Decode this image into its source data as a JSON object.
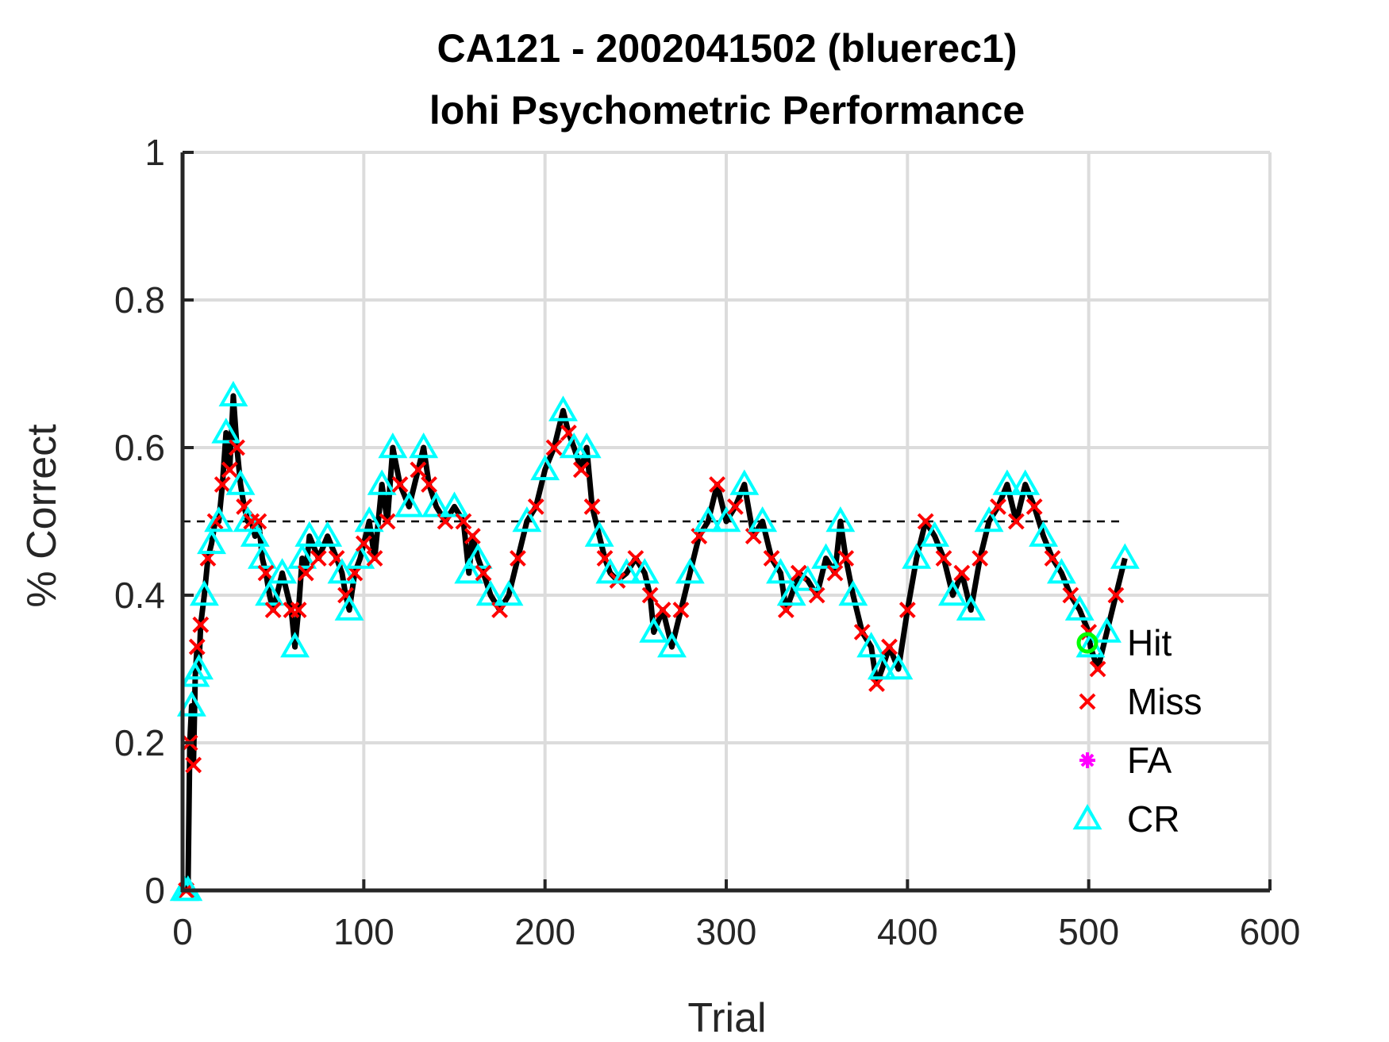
{
  "chart_data": {
    "type": "line",
    "title": [
      "CA121 - 2002041502 (bluerec1)",
      "lohi Psychometric Performance"
    ],
    "xlabel": "Trial",
    "ylabel": "% Correct",
    "xlim": [
      0,
      600
    ],
    "ylim": [
      0,
      1
    ],
    "xticks": [
      0,
      100,
      200,
      300,
      400,
      500,
      600
    ],
    "yticks": [
      0,
      0.2,
      0.4,
      0.6,
      0.8,
      1
    ],
    "ytick_labels": [
      "0",
      "0.2",
      "0.4",
      "0.6",
      "0.8",
      "1"
    ],
    "grid": true,
    "reference_line": {
      "y": 0.5,
      "style": "dashed"
    },
    "legend_position": "bottom-right",
    "legend": [
      {
        "name": "Hit",
        "marker": "circle",
        "color": "#00ff00"
      },
      {
        "name": "Miss",
        "marker": "x",
        "color": "#ff0000"
      },
      {
        "name": "FA",
        "marker": "asterisk",
        "color": "#ff00ff"
      },
      {
        "name": "CR",
        "marker": "triangle",
        "color": "#00ffff"
      }
    ],
    "series": [
      {
        "name": "running performance",
        "color": "#000000",
        "x": [
          1,
          2,
          3,
          4,
          5,
          6,
          7,
          8,
          9,
          10,
          12,
          14,
          16,
          18,
          20,
          22,
          24,
          26,
          28,
          30,
          32,
          34,
          36,
          38,
          40,
          42,
          44,
          46,
          48,
          50,
          55,
          60,
          62,
          64,
          66,
          68,
          70,
          75,
          80,
          85,
          88,
          90,
          92,
          95,
          98,
          100,
          103,
          106,
          110,
          113,
          116,
          120,
          125,
          130,
          133,
          136,
          140,
          145,
          150,
          155,
          158,
          160,
          163,
          166,
          170,
          175,
          180,
          185,
          190,
          195,
          200,
          205,
          210,
          213,
          216,
          220,
          223,
          226,
          230,
          233,
          236,
          240,
          245,
          250,
          255,
          258,
          260,
          265,
          270,
          275,
          280,
          285,
          290,
          295,
          300,
          305,
          310,
          315,
          320,
          325,
          330,
          333,
          336,
          340,
          345,
          350,
          355,
          360,
          363,
          366,
          370,
          375,
          380,
          383,
          386,
          390,
          395,
          400,
          405,
          410,
          415,
          420,
          425,
          430,
          435,
          440,
          445,
          450,
          455,
          460,
          465,
          470,
          475,
          480,
          485,
          490,
          495,
          500,
          501,
          505,
          510,
          515,
          520
        ],
        "y": [
          0,
          0,
          0,
          0.2,
          0.25,
          0.17,
          0.29,
          0.33,
          0.3,
          0.36,
          0.4,
          0.45,
          0.47,
          0.5,
          0.5,
          0.55,
          0.62,
          0.57,
          0.67,
          0.6,
          0.55,
          0.52,
          0.5,
          0.5,
          0.48,
          0.5,
          0.45,
          0.43,
          0.4,
          0.38,
          0.43,
          0.38,
          0.33,
          0.38,
          0.45,
          0.43,
          0.48,
          0.45,
          0.48,
          0.45,
          0.43,
          0.4,
          0.38,
          0.43,
          0.45,
          0.47,
          0.5,
          0.45,
          0.55,
          0.5,
          0.6,
          0.55,
          0.52,
          0.57,
          0.6,
          0.55,
          0.52,
          0.5,
          0.52,
          0.5,
          0.43,
          0.48,
          0.45,
          0.43,
          0.4,
          0.38,
          0.4,
          0.45,
          0.5,
          0.52,
          0.57,
          0.6,
          0.65,
          0.62,
          0.6,
          0.57,
          0.6,
          0.52,
          0.48,
          0.45,
          0.43,
          0.42,
          0.43,
          0.45,
          0.43,
          0.4,
          0.35,
          0.38,
          0.33,
          0.38,
          0.43,
          0.48,
          0.5,
          0.55,
          0.5,
          0.52,
          0.55,
          0.48,
          0.5,
          0.45,
          0.43,
          0.38,
          0.4,
          0.43,
          0.42,
          0.4,
          0.45,
          0.43,
          0.5,
          0.45,
          0.4,
          0.35,
          0.33,
          0.28,
          0.3,
          0.33,
          0.3,
          0.38,
          0.45,
          0.5,
          0.48,
          0.45,
          0.4,
          0.43,
          0.38,
          0.45,
          0.5,
          0.52,
          0.55,
          0.5,
          0.55,
          0.52,
          0.48,
          0.45,
          0.43,
          0.4,
          0.38,
          0.35,
          0.33,
          0.3,
          0.35,
          0.4,
          0.45
        ]
      }
    ]
  }
}
